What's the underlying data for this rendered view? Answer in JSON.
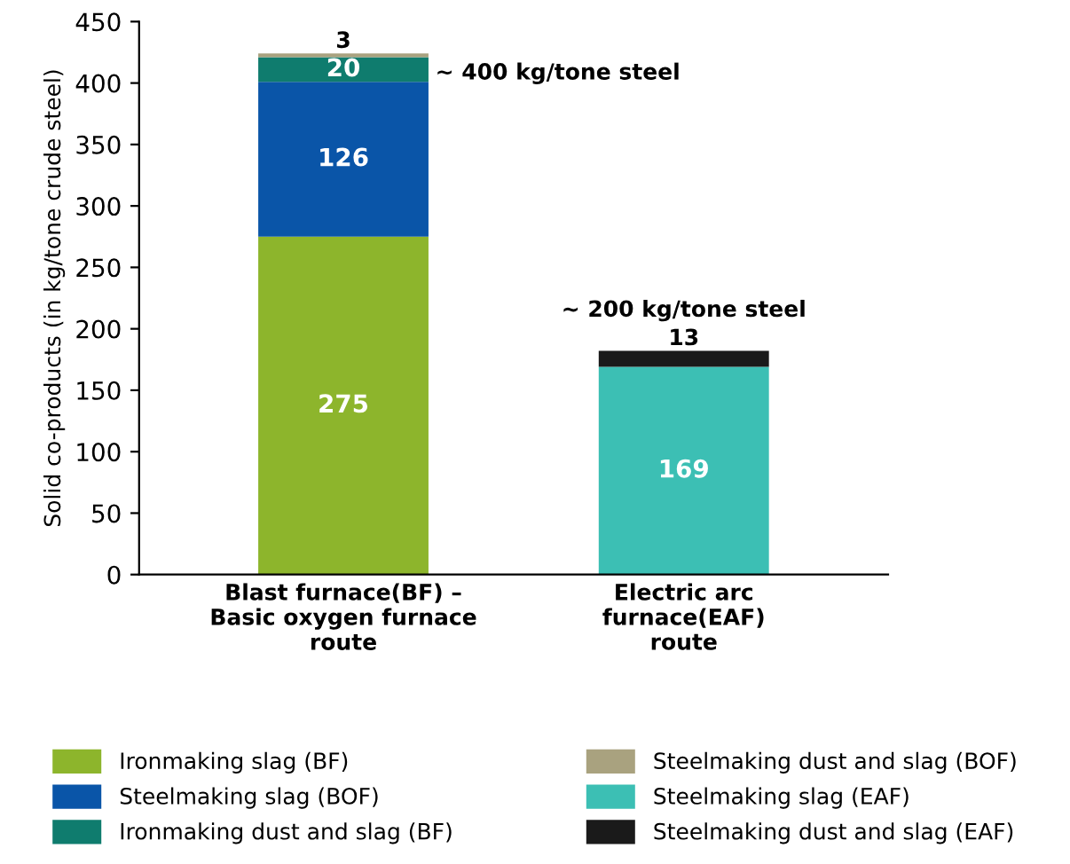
{
  "chart_data": {
    "type": "bar",
    "stacked": true,
    "ylabel": "Solid co-products (in kg/tone crude steel)",
    "categories": [
      "Blast furnace(BF) –\nBasic oxygen furnace\nroute",
      "Electric arc\nfurnace(EAF)\nroute"
    ],
    "series": [
      {
        "name": "Ironmaking slag (BF)",
        "color": "#8db52c",
        "values": [
          275,
          null
        ]
      },
      {
        "name": "Steelmaking slag (BOF)",
        "color": "#0a55a8",
        "values": [
          126,
          null
        ]
      },
      {
        "name": "Ironmaking dust and slag (BF)",
        "color": "#0f7c6e",
        "values": [
          20,
          null
        ]
      },
      {
        "name": "Steelmaking dust and slag (BOF)",
        "color": "#a9a27f",
        "values": [
          3,
          null
        ]
      },
      {
        "name": "Steelmaking slag (EAF)",
        "color": "#3cbfb4",
        "values": [
          null,
          169
        ]
      },
      {
        "name": "Steelmaking dust and slag (EAF)",
        "color": "#1a1a1a",
        "values": [
          null,
          13
        ]
      }
    ],
    "ylim": [
      0,
      450
    ],
    "yticks": [
      0,
      50,
      100,
      150,
      200,
      250,
      300,
      350,
      400,
      450
    ],
    "data_labels": true,
    "grid": false,
    "legend": "bottom",
    "annotations": [
      "~ 400 kg/tone steel",
      "~ 200 kg/tone steel"
    ]
  }
}
